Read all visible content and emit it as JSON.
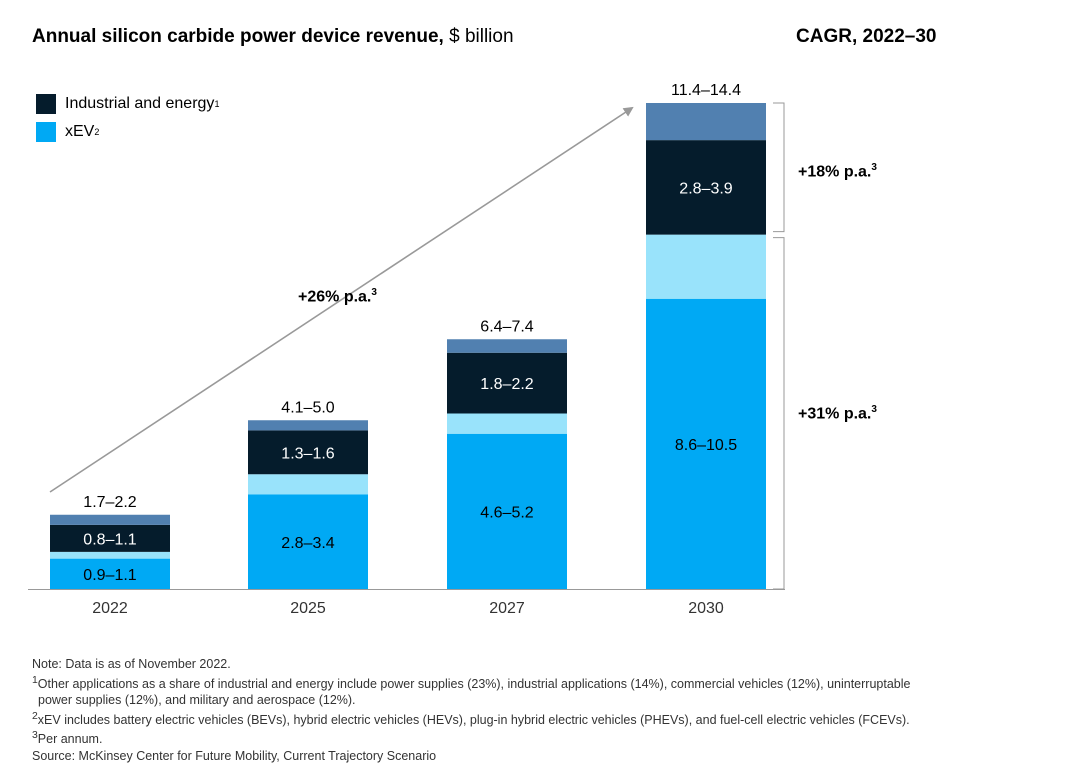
{
  "title_bold": "Annual silicon carbide power device revenue,",
  "title_unit": "$ billion",
  "cagr_title": "CAGR, 2022–30",
  "legend": {
    "industrial": "Industrial and energy",
    "industrial_sup": "1",
    "xev": "xEV",
    "xev_sup": "2"
  },
  "colors": {
    "xev": "#00a9f4",
    "xev_light": "#99e3fb",
    "industrial": "#051c2c",
    "industrial_top": "#5180b0",
    "axis": "#999999",
    "arrow": "#999999"
  },
  "overall_cagr": {
    "label": "+26% p.a.",
    "sup": "3"
  },
  "segment_cagr": [
    {
      "label": "+18% p.a.",
      "sup": "3"
    },
    {
      "label": "+31% p.a.",
      "sup": "3"
    }
  ],
  "chart_data": {
    "type": "bar",
    "stacked": true,
    "title": "Annual silicon carbide power device revenue, $ billion",
    "categories": [
      "2022",
      "2025",
      "2027",
      "2030"
    ],
    "totals": [
      "1.7–2.2",
      "4.1–5.0",
      "6.4–7.4",
      "11.4–14.4"
    ],
    "series": [
      {
        "name": "xEV (low)",
        "values": [
          0.9,
          2.8,
          4.6,
          8.6
        ]
      },
      {
        "name": "xEV (range)",
        "values": [
          0.2,
          0.6,
          0.6,
          1.9
        ]
      },
      {
        "name": "Industrial and energy (low)",
        "values": [
          0.8,
          1.3,
          1.8,
          2.8
        ]
      },
      {
        "name": "Industrial and energy (range)",
        "values": [
          0.3,
          0.3,
          0.4,
          1.1
        ]
      }
    ],
    "xev_labels": [
      "0.9–1.1",
      "2.8–3.4",
      "4.6–5.2",
      "8.6–10.5"
    ],
    "industrial_labels": [
      "0.8–1.1",
      "1.3–1.6",
      "1.8–2.2",
      "2.8–3.9"
    ],
    "ylim": [
      0,
      14.4
    ],
    "xlabel": "",
    "ylabel": ""
  },
  "notes": {
    "note": "Note: Data is as of November 2022.",
    "fn1_a": "Other applications as a share of industrial and energy include power supplies (23%), industrial applications (14%), commercial vehicles (12%), uninterruptable",
    "fn1_b": "power supplies (12%), and military and aerospace (12%).",
    "fn2": "xEV includes battery electric vehicles (BEVs), hybrid electric vehicles (HEVs), plug-in hybrid electric vehicles (PHEVs), and fuel-cell electric vehicles (FCEVs).",
    "fn3": "Per annum.",
    "source": "Source: McKinsey Center for Future Mobility, Current Trajectory Scenario",
    "sup1": "1",
    "sup2": "2",
    "sup3": "3"
  }
}
